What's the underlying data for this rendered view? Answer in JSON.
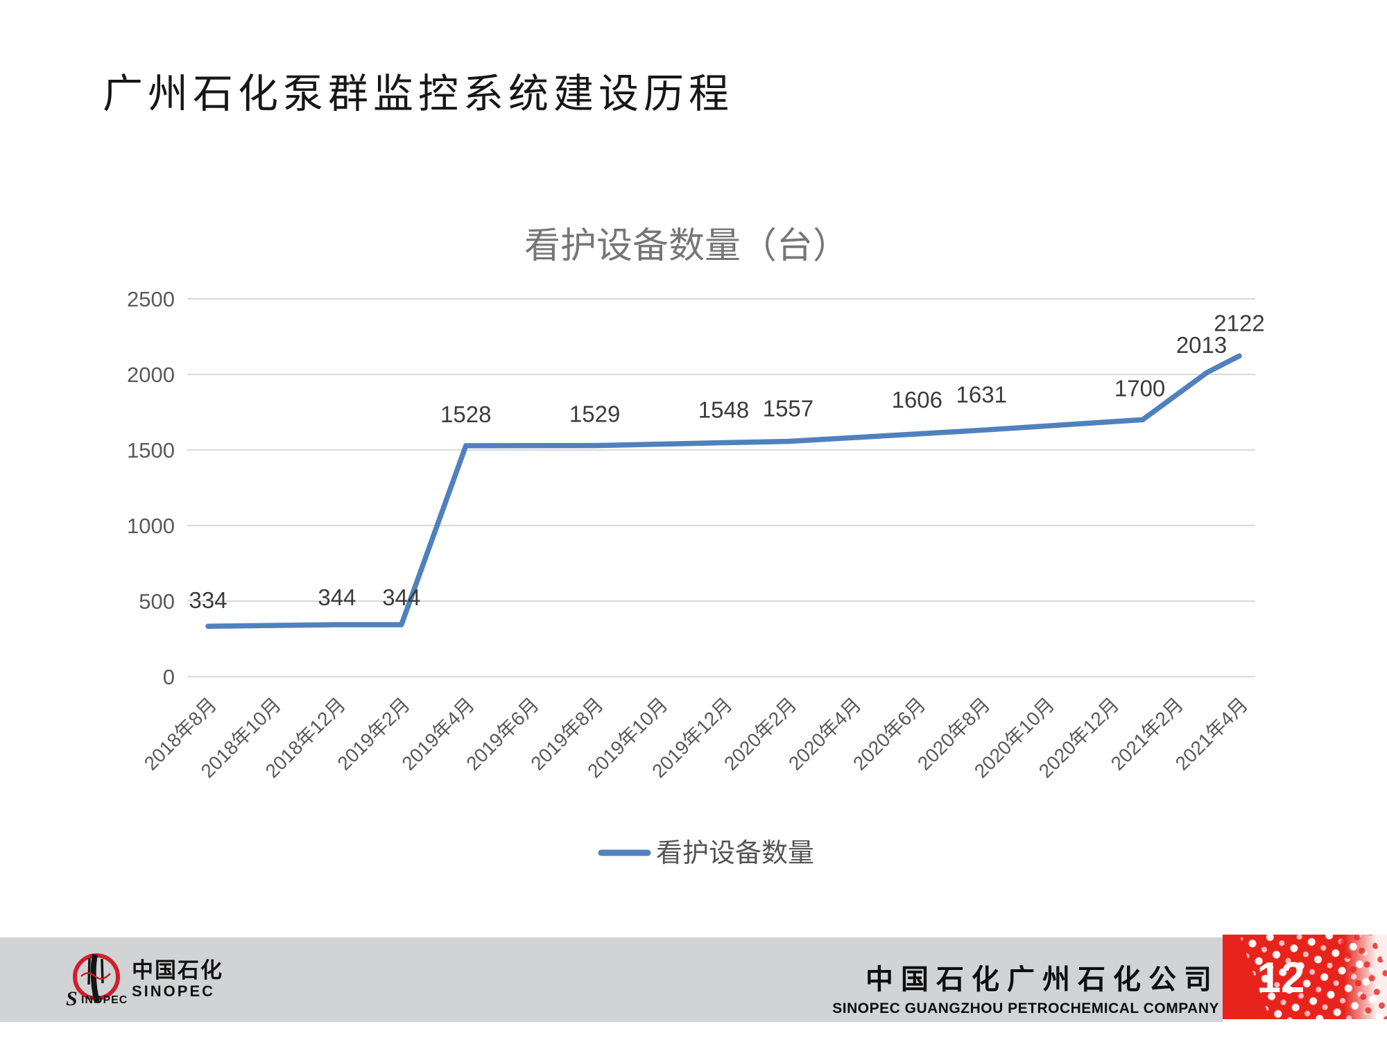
{
  "slide": {
    "title": "广州石化泵群监控系统建设历程",
    "page_number": "12"
  },
  "chart_data": {
    "type": "line",
    "title": "看护设备数量（台）",
    "xlabel": "",
    "ylabel": "",
    "ylim": [
      0,
      2500
    ],
    "ytick_step": 500,
    "grid": "horizontal",
    "x_tick_labels": [
      "2018年8月",
      "2018年10月",
      "2018年12月",
      "2019年2月",
      "2019年4月",
      "2019年6月",
      "2019年8月",
      "2019年10月",
      "2019年12月",
      "2020年2月",
      "2020年4月",
      "2020年6月",
      "2020年8月",
      "2020年10月",
      "2020年12月",
      "2021年2月",
      "2021年4月"
    ],
    "x_axis_note": "category axis in 2-month steps; t = months after 2018年8月, 0..32",
    "series": [
      {
        "name": "看护设备数量",
        "color": "#4F81BD",
        "points": [
          {
            "month": "2018年8月",
            "t": 0,
            "value": 334
          },
          {
            "month": "2018年12月",
            "t": 4,
            "value": 344
          },
          {
            "month": "2019年2月",
            "t": 6,
            "value": 344
          },
          {
            "month": "2019年4月",
            "t": 8,
            "value": 1528
          },
          {
            "month": "2019年8月",
            "t": 12,
            "value": 1529
          },
          {
            "month": "2019年12月",
            "t": 16,
            "value": 1548
          },
          {
            "month": "2020年2月",
            "t": 18,
            "value": 1557
          },
          {
            "month": "2020年6月",
            "t": 22,
            "value": 1606
          },
          {
            "month": "2020年8月",
            "t": 24,
            "value": 1631
          },
          {
            "month": "2021年1月",
            "t": 29,
            "value": 1700
          },
          {
            "month": "2021年3月",
            "t": 31,
            "value": 2013
          },
          {
            "month": "2021年4月",
            "t": 32,
            "value": 2122
          }
        ]
      }
    ],
    "legend": {
      "position": "bottom",
      "entries": [
        {
          "label": "看护设备数量",
          "color": "#4F81BD"
        }
      ]
    },
    "colors": {
      "gridline": "#D9D9D9",
      "tick_text": "#595959",
      "data_label_text": "#3B3B3B",
      "title_text": "#767676"
    }
  },
  "footer": {
    "logo": {
      "cn": "中国石化",
      "en": "SINOPEC"
    },
    "company_cn": "中国石化广州石化公司",
    "company_en": "SINOPEC GUANGZHOU PETROCHEMICAL COMPANY",
    "colors": {
      "bar": "#d2d3d5",
      "accent_red": "#e7231c"
    }
  }
}
